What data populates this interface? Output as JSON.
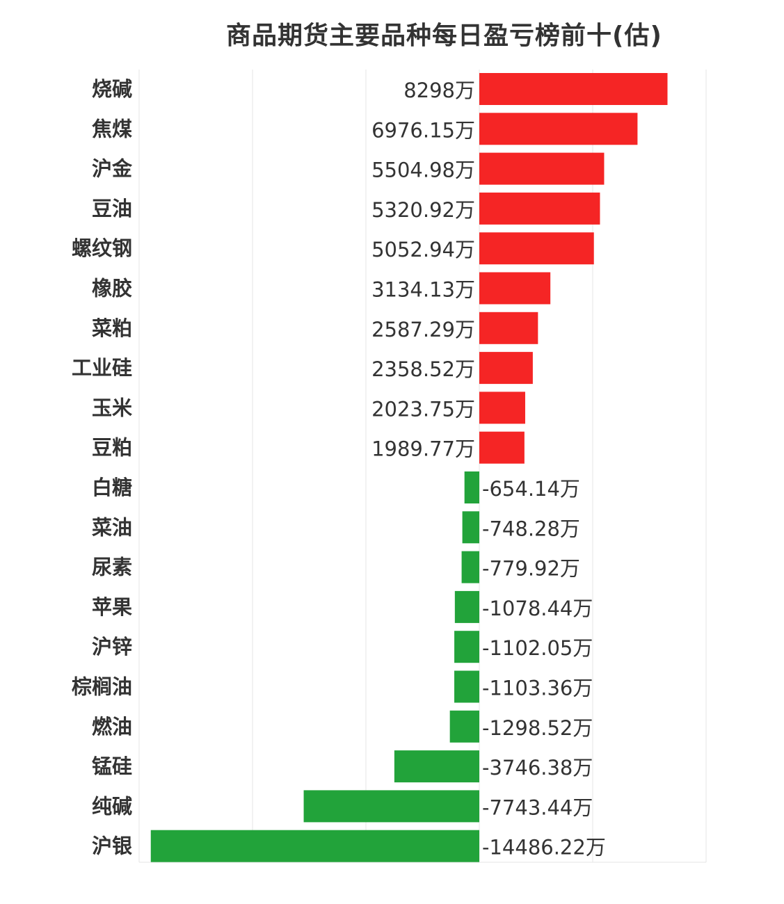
{
  "chart_data": {
    "type": "bar",
    "orientation": "horizontal",
    "title": "商品期货主要品种每日盈亏榜前十(估)",
    "xlabel": "",
    "ylabel": "",
    "unit": "万",
    "grid": true,
    "xlim": [
      -15000,
      10000
    ],
    "categories": [
      "烧碱",
      "焦煤",
      "沪金",
      "豆油",
      "螺纹钢",
      "橡胶",
      "菜粕",
      "工业硅",
      "玉米",
      "豆粕",
      "白糖",
      "菜油",
      "尿素",
      "苹果",
      "沪锌",
      "棕榈油",
      "燃油",
      "锰硅",
      "纯碱",
      "沪银"
    ],
    "values": [
      8298,
      6976.15,
      5504.98,
      5320.92,
      5052.94,
      3134.13,
      2587.29,
      2358.52,
      2023.75,
      1989.77,
      -654.14,
      -748.28,
      -779.92,
      -1078.44,
      -1102.05,
      -1103.36,
      -1298.52,
      -3746.38,
      -7743.44,
      -14486.22
    ],
    "value_labels": [
      "8298万",
      "6976.15万",
      "5504.98万",
      "5320.92万",
      "5052.94万",
      "3134.13万",
      "2587.29万",
      "2358.52万",
      "2023.75万",
      "1989.77万",
      "-654.14万",
      "-748.28万",
      "-779.92万",
      "-1078.44万",
      "-1102.05万",
      "-1103.36万",
      "-1298.52万",
      "-3746.38万",
      "-7743.44万",
      "-14486.22万"
    ],
    "colors": {
      "positive": "#f52525",
      "negative": "#22a33a",
      "grid": "#e6e6e6"
    }
  }
}
